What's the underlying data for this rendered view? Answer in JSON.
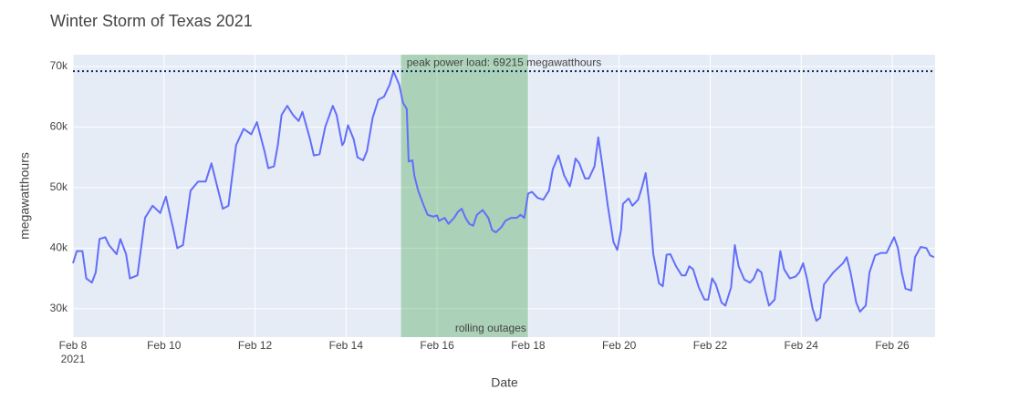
{
  "chart_data": {
    "type": "line",
    "title": "Winter Storm of Texas 2021",
    "x_label": "Date",
    "y_label": "megawatthours",
    "color": "#636efa",
    "grid": true,
    "xlim": [
      "2021-02-08 00:00",
      "2021-02-26 22:36"
    ],
    "ylim": [
      25300,
      71950
    ],
    "yticks": [
      {
        "value": 30000,
        "label": "30k"
      },
      {
        "value": 40000,
        "label": "40k"
      },
      {
        "value": 50000,
        "label": "50k"
      },
      {
        "value": 60000,
        "label": "60k"
      },
      {
        "value": 70000,
        "label": "70k"
      }
    ],
    "xticks": [
      {
        "value": "2021-02-08 00:00",
        "label": "Feb 8\n2021"
      },
      {
        "value": "2021-02-10 00:00",
        "label": "Feb 10"
      },
      {
        "value": "2021-02-12 00:00",
        "label": "Feb 12"
      },
      {
        "value": "2021-02-14 00:00",
        "label": "Feb 14"
      },
      {
        "value": "2021-02-16 00:00",
        "label": "Feb 16"
      },
      {
        "value": "2021-02-18 00:00",
        "label": "Feb 18"
      },
      {
        "value": "2021-02-20 00:00",
        "label": "Feb 20"
      },
      {
        "value": "2021-02-22 00:00",
        "label": "Feb 22"
      },
      {
        "value": "2021-02-24 00:00",
        "label": "Feb 24"
      },
      {
        "value": "2021-02-26 00:00",
        "label": "Feb 26"
      }
    ],
    "hline": {
      "value": 69215,
      "label": "peak power load: 69215 megawatthours",
      "color": "#0d2a63"
    },
    "vrect": {
      "x0": "2021-02-15 05:00",
      "x1": "2021-02-18 00:00",
      "label": "rolling outages",
      "color": "green"
    },
    "x": [
      "2021-02-08 00:00",
      "2021-02-08 02:00",
      "2021-02-08 05:00",
      "2021-02-08 07:00",
      "2021-02-08 10:00",
      "2021-02-08 12:00",
      "2021-02-08 14:00",
      "2021-02-08 17:00",
      "2021-02-08 19:00",
      "2021-02-08 23:00",
      "2021-02-09 01:00",
      "2021-02-09 04:00",
      "2021-02-09 06:00",
      "2021-02-09 10:00",
      "2021-02-09 14:00",
      "2021-02-09 18:00",
      "2021-02-09 22:00",
      "2021-02-10 01:00",
      "2021-02-10 05:00",
      "2021-02-10 07:00",
      "2021-02-10 10:00",
      "2021-02-10 12:00",
      "2021-02-10 14:00",
      "2021-02-10 18:00",
      "2021-02-10 22:00",
      "2021-02-11 01:00",
      "2021-02-11 05:00",
      "2021-02-11 07:00",
      "2021-02-11 10:00",
      "2021-02-11 12:00",
      "2021-02-11 14:00",
      "2021-02-11 18:00",
      "2021-02-11 22:00",
      "2021-02-12 01:00",
      "2021-02-12 05:00",
      "2021-02-12 07:00",
      "2021-02-12 10:00",
      "2021-02-12 12:00",
      "2021-02-12 14:00",
      "2021-02-12 17:00",
      "2021-02-12 20:00",
      "2021-02-12 23:00",
      "2021-02-13 01:00",
      "2021-02-13 05:00",
      "2021-02-13 07:00",
      "2021-02-13 10:00",
      "2021-02-13 13:00",
      "2021-02-13 17:00",
      "2021-02-13 19:00",
      "2021-02-13 22:00",
      "2021-02-13 23:00",
      "2021-02-14 01:00",
      "2021-02-14 04:00",
      "2021-02-14 06:00",
      "2021-02-14 09:00",
      "2021-02-14 11:00",
      "2021-02-14 14:00",
      "2021-02-14 17:00",
      "2021-02-14 20:00",
      "2021-02-14 23:00",
      "2021-02-15 01:00",
      "2021-02-15 04:00",
      "2021-02-15 06:00",
      "2021-02-15 08:00",
      "2021-02-15 09:00",
      "2021-02-15 11:00",
      "2021-02-15 12:00",
      "2021-02-15 14:00",
      "2021-02-15 17:00",
      "2021-02-15 19:00",
      "2021-02-15 22:00",
      "2021-02-16 00:00",
      "2021-02-16 01:00",
      "2021-02-16 04:00",
      "2021-02-16 06:00",
      "2021-02-16 09:00",
      "2021-02-16 11:00",
      "2021-02-16 13:00",
      "2021-02-16 15:00",
      "2021-02-16 17:00",
      "2021-02-16 19:00",
      "2021-02-16 21:00",
      "2021-02-17 00:00",
      "2021-02-17 03:00",
      "2021-02-17 05:00",
      "2021-02-17 07:00",
      "2021-02-17 10:00",
      "2021-02-17 12:00",
      "2021-02-17 15:00",
      "2021-02-17 18:00",
      "2021-02-17 20:00",
      "2021-02-17 22:00",
      "2021-02-18 00:00",
      "2021-02-18 02:00",
      "2021-02-18 05:00",
      "2021-02-18 08:00",
      "2021-02-18 11:00",
      "2021-02-18 13:00",
      "2021-02-18 16:00",
      "2021-02-18 19:00",
      "2021-02-18 22:00",
      "2021-02-18 23:00",
      "2021-02-19 01:00",
      "2021-02-19 03:00",
      "2021-02-19 06:00",
      "2021-02-19 08:00",
      "2021-02-19 11:00",
      "2021-02-19 13:00",
      "2021-02-19 15:00",
      "2021-02-19 18:00",
      "2021-02-19 21:00",
      "2021-02-19 23:00",
      "2021-02-20 01:00",
      "2021-02-20 02:00",
      "2021-02-20 05:00",
      "2021-02-20 07:00",
      "2021-02-20 10:00",
      "2021-02-20 12:00",
      "2021-02-20 14:00",
      "2021-02-20 16:00",
      "2021-02-20 18:00",
      "2021-02-20 21:00",
      "2021-02-20 23:00",
      "2021-02-21 01:00",
      "2021-02-21 03:00",
      "2021-02-21 06:00",
      "2021-02-21 09:00",
      "2021-02-21 11:00",
      "2021-02-21 13:00",
      "2021-02-21 15:00",
      "2021-02-21 18:00",
      "2021-02-21 21:00",
      "2021-02-21 23:00",
      "2021-02-22 01:00",
      "2021-02-22 03:00",
      "2021-02-22 06:00",
      "2021-02-22 08:00",
      "2021-02-22 11:00",
      "2021-02-22 13:00",
      "2021-02-22 15:00",
      "2021-02-22 18:00",
      "2021-02-22 21:00",
      "2021-02-22 23:00",
      "2021-02-23 01:00",
      "2021-02-23 03:00",
      "2021-02-23 05:00",
      "2021-02-23 07:00",
      "2021-02-23 10:00",
      "2021-02-23 13:00",
      "2021-02-23 15:00",
      "2021-02-23 18:00",
      "2021-02-23 21:00",
      "2021-02-23 23:00",
      "2021-02-24 01:00",
      "2021-02-24 03:00",
      "2021-02-24 06:00",
      "2021-02-24 08:00",
      "2021-02-24 10:00",
      "2021-02-24 12:00",
      "2021-02-24 17:00",
      "2021-02-24 22:00",
      "2021-02-25 00:00",
      "2021-02-25 02:00",
      "2021-02-25 05:00",
      "2021-02-25 07:00",
      "2021-02-25 10:00",
      "2021-02-25 12:00",
      "2021-02-25 15:00",
      "2021-02-25 18:00",
      "2021-02-25 21:00",
      "2021-02-25 23:00",
      "2021-02-26 01:00",
      "2021-02-26 03:00",
      "2021-02-26 05:00",
      "2021-02-26 07:00",
      "2021-02-26 10:00",
      "2021-02-26 12:00",
      "2021-02-26 15:00",
      "2021-02-26 18:00",
      "2021-02-26 20:00",
      "2021-02-26 22:00"
    ],
    "values": [
      37500,
      39500,
      39500,
      35000,
      34300,
      36000,
      41500,
      41800,
      40500,
      39000,
      41500,
      39000,
      35000,
      35500,
      45000,
      47000,
      45800,
      48500,
      43000,
      40000,
      40500,
      45000,
      49500,
      51000,
      51000,
      54000,
      49000,
      46500,
      47000,
      52000,
      57000,
      59700,
      58800,
      60800,
      56000,
      53200,
      53500,
      57000,
      62000,
      63500,
      62000,
      61000,
      62500,
      58000,
      55300,
      55500,
      60000,
      63500,
      62000,
      57000,
      57500,
      60300,
      58000,
      55000,
      54500,
      56000,
      61500,
      64500,
      65000,
      67000,
      69200,
      67000,
      64000,
      63000,
      54300,
      54500,
      52000,
      49500,
      47000,
      45500,
      45200,
      45400,
      44500,
      45000,
      44000,
      45000,
      46000,
      46500,
      45000,
      44000,
      43700,
      45500,
      46300,
      45000,
      43000,
      42600,
      43500,
      44500,
      45000,
      45000,
      45500,
      45000,
      49000,
      49300,
      48300,
      48000,
      49500,
      53000,
      55300,
      52000,
      50200,
      51500,
      54800,
      54000,
      51500,
      51500,
      53500,
      58300,
      54000,
      47000,
      41000,
      39700,
      43000,
      47300,
      48200,
      47000,
      48000,
      50000,
      52400,
      47000,
      39000,
      34200,
      33700,
      38900,
      39000,
      37000,
      35500,
      35500,
      37000,
      36500,
      33500,
      31500,
      31500,
      35000,
      34000,
      31000,
      30500,
      33500,
      40500,
      37000,
      34800,
      34300,
      35000,
      36500,
      36000,
      33000,
      30500,
      31500,
      39500,
      36500,
      35000,
      35300,
      36000,
      37500,
      35000,
      30000,
      28000,
      28500,
      34000,
      36000,
      37500,
      38500,
      36000,
      31000,
      29500,
      30500,
      36000,
      38800,
      39200,
      39200,
      40500,
      41800,
      40000,
      36000,
      33300,
      33000,
      38500,
      40200,
      40000,
      38800,
      38500
    ]
  }
}
